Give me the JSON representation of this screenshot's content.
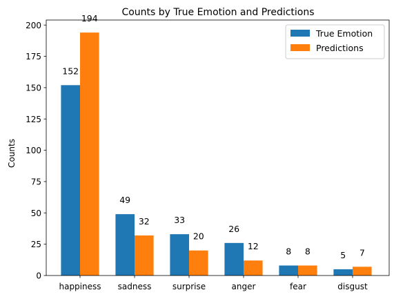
{
  "chart_data": {
    "type": "bar",
    "title": "Counts by True Emotion and Predictions",
    "xlabel": "",
    "ylabel": "Counts",
    "categories": [
      "happiness",
      "sadness",
      "surprise",
      "anger",
      "fear",
      "disgust"
    ],
    "series": [
      {
        "name": "True Emotion",
        "color": "#1f77b4",
        "values": [
          152,
          49,
          33,
          26,
          8,
          5
        ]
      },
      {
        "name": "Predictions",
        "color": "#ff7f0e",
        "values": [
          194,
          32,
          20,
          12,
          8,
          7
        ]
      }
    ],
    "ylim": [
      0,
      204
    ],
    "yticks": [
      0,
      25,
      50,
      75,
      100,
      125,
      150,
      175,
      200
    ],
    "grid": false,
    "legend_position": "top-right"
  }
}
